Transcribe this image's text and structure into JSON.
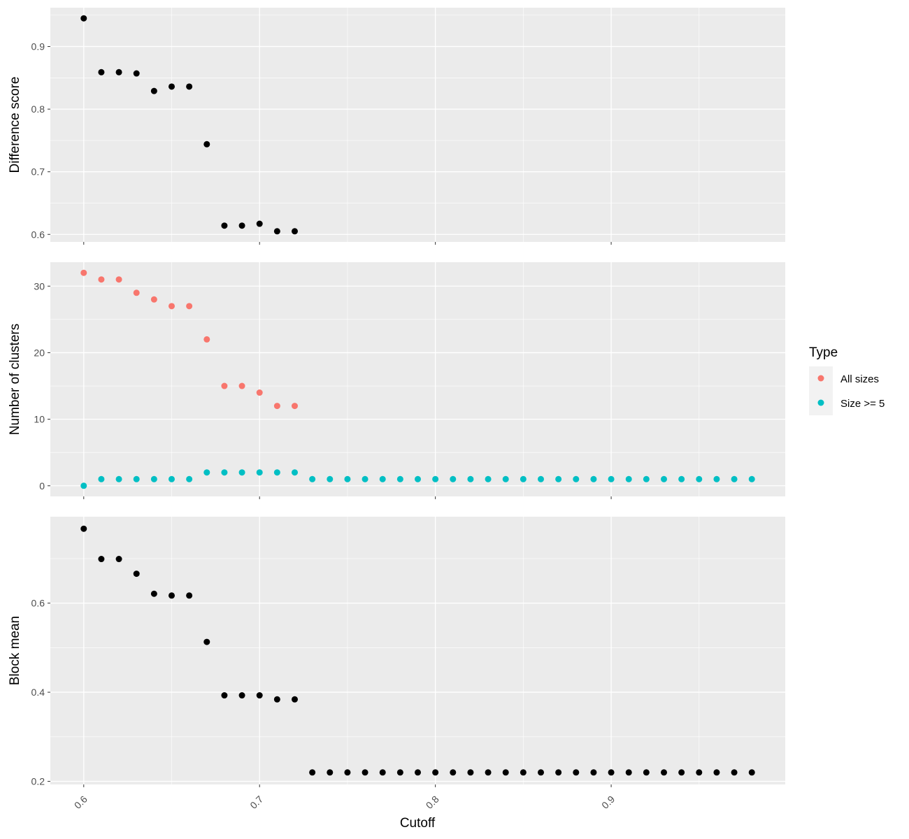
{
  "chart_data": {
    "type": "scatter",
    "xlabel": "Cutoff",
    "xlim": [
      0.581,
      0.999
    ],
    "x_ticks": [
      0.6,
      0.7,
      0.8,
      0.9
    ],
    "x_tick_labels": [
      "0.6",
      "0.7",
      "0.8",
      "0.9"
    ],
    "grid": true,
    "legend": {
      "title": "Type",
      "placement": "right",
      "entries": [
        {
          "name": "All sizes",
          "color": "#F8766D"
        },
        {
          "name": "Size >= 5",
          "color": "#00BFC4"
        }
      ]
    },
    "panels": [
      {
        "ylabel": "Difference score",
        "ylim": [
          0.588,
          0.962
        ],
        "y_ticks": [
          0.6,
          0.7,
          0.8,
          0.9
        ],
        "y_tick_labels": [
          "0.6",
          "0.7",
          "0.8",
          "0.9"
        ],
        "series": [
          {
            "color": "#000000",
            "x": [
              0.6,
              0.61,
              0.62,
              0.63,
              0.64,
              0.65,
              0.66,
              0.67,
              0.68,
              0.69,
              0.7,
              0.71,
              0.72
            ],
            "y": [
              0.945,
              0.859,
              0.859,
              0.857,
              0.829,
              0.836,
              0.836,
              0.744,
              0.614,
              0.614,
              0.617,
              0.605,
              0.605
            ]
          }
        ]
      },
      {
        "ylabel": "Number of clusters",
        "ylim": [
          -1.6,
          33.6
        ],
        "y_ticks": [
          0,
          10,
          20,
          30
        ],
        "y_tick_labels": [
          "0",
          "10",
          "20",
          "30"
        ],
        "series": [
          {
            "name": "All sizes",
            "color": "#F8766D",
            "x": [
              0.6,
              0.61,
              0.62,
              0.63,
              0.64,
              0.65,
              0.66,
              0.67,
              0.68,
              0.69,
              0.7,
              0.71,
              0.72
            ],
            "y": [
              32,
              31,
              31,
              29,
              28,
              27,
              27,
              22,
              15,
              15,
              14,
              12,
              12
            ]
          },
          {
            "name": "Size >= 5",
            "color": "#00BFC4",
            "x": [
              0.6,
              0.61,
              0.62,
              0.63,
              0.64,
              0.65,
              0.66,
              0.67,
              0.68,
              0.69,
              0.7,
              0.71,
              0.72,
              0.73,
              0.74,
              0.75,
              0.76,
              0.77,
              0.78,
              0.79,
              0.8,
              0.81,
              0.82,
              0.83,
              0.84,
              0.85,
              0.86,
              0.87,
              0.88,
              0.89,
              0.9,
              0.91,
              0.92,
              0.93,
              0.94,
              0.95,
              0.96,
              0.97,
              0.98
            ],
            "y": [
              0,
              1,
              1,
              1,
              1,
              1,
              1,
              2,
              2,
              2,
              2,
              2,
              2,
              1,
              1,
              1,
              1,
              1,
              1,
              1,
              1,
              1,
              1,
              1,
              1,
              1,
              1,
              1,
              1,
              1,
              1,
              1,
              1,
              1,
              1,
              1,
              1,
              1,
              1
            ]
          }
        ]
      },
      {
        "ylabel": "Block mean",
        "ylim": [
          0.193,
          0.794
        ],
        "y_ticks": [
          0.2,
          0.4,
          0.6
        ],
        "y_tick_labels": [
          "0.2",
          "0.4",
          "0.6"
        ],
        "series": [
          {
            "color": "#000000",
            "x": [
              0.6,
              0.61,
              0.62,
              0.63,
              0.64,
              0.65,
              0.66,
              0.67,
              0.68,
              0.69,
              0.7,
              0.71,
              0.72,
              0.73,
              0.74,
              0.75,
              0.76,
              0.77,
              0.78,
              0.79,
              0.8,
              0.81,
              0.82,
              0.83,
              0.84,
              0.85,
              0.86,
              0.87,
              0.88,
              0.89,
              0.9,
              0.91,
              0.92,
              0.93,
              0.94,
              0.95,
              0.96,
              0.97,
              0.98
            ],
            "y": [
              0.767,
              0.699,
              0.699,
              0.666,
              0.621,
              0.617,
              0.617,
              0.513,
              0.393,
              0.393,
              0.393,
              0.384,
              0.384,
              0.22,
              0.22,
              0.22,
              0.22,
              0.22,
              0.22,
              0.22,
              0.22,
              0.22,
              0.22,
              0.22,
              0.22,
              0.22,
              0.22,
              0.22,
              0.22,
              0.22,
              0.22,
              0.22,
              0.22,
              0.22,
              0.22,
              0.22,
              0.22,
              0.22,
              0.22
            ]
          }
        ]
      }
    ]
  }
}
